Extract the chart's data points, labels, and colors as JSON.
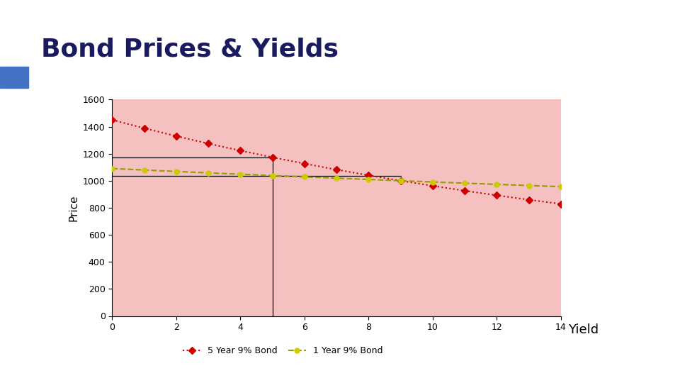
{
  "title": "Bond Prices & Yields",
  "title_color": "#1a1a5e",
  "title_fontsize": 26,
  "xlabel": "Yield",
  "ylabel": "Price",
  "plot_bg_color": "#f5c0c0",
  "header_bar_color": "#7ab0d4",
  "header_bar_left_color": "#4472c4",
  "xlim": [
    0,
    14
  ],
  "ylim": [
    0,
    1600
  ],
  "xticks": [
    0,
    2,
    4,
    6,
    8,
    10,
    12,
    14
  ],
  "yticks": [
    0,
    200,
    400,
    600,
    800,
    1000,
    1200,
    1400,
    1600
  ],
  "yields": [
    0,
    1,
    2,
    3,
    4,
    5,
    6,
    7,
    8,
    9,
    10,
    11,
    12,
    13,
    14
  ],
  "face_value": 1000,
  "coupon_rate": 0.09,
  "maturity_5yr": 5,
  "maturity_1yr": 1,
  "line5_color": "#cc0000",
  "line1_color": "#999900",
  "marker5_color": "#cc0000",
  "marker1_color": "#cccc00",
  "marker_size": 5,
  "vline_x": 5,
  "legend_labels": [
    "5 Year 9% Bond",
    "1 Year 9% Bond"
  ]
}
